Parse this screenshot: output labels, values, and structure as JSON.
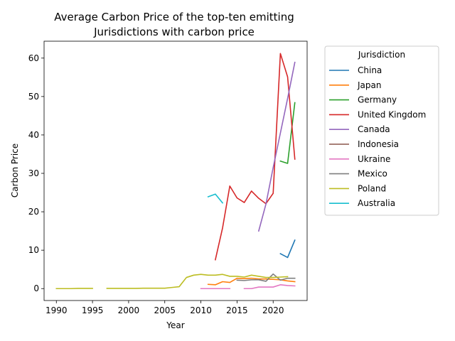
{
  "chart_data": {
    "type": "line",
    "title_line1": "Average Carbon Price of the top-ten emitting",
    "title_line2": "Jurisdictions with carbon price",
    "xlabel": "Year",
    "ylabel": "Carbon Price",
    "xlim": [
      1988.3,
      2024.7
    ],
    "ylim": [
      -3.1,
      64.4
    ],
    "xticks": [
      1990,
      1995,
      2000,
      2005,
      2010,
      2015,
      2020
    ],
    "yticks": [
      0,
      10,
      20,
      30,
      40,
      50,
      60
    ],
    "grid": false,
    "legend_title": "Jurisdiction",
    "legend_placement": "outside right",
    "series": [
      {
        "name": "China",
        "color": "#1f77b4",
        "x": [
          2021,
          2022,
          2023
        ],
        "y": [
          9.1,
          8.1,
          12.6
        ]
      },
      {
        "name": "Japan",
        "color": "#ff7f0e",
        "x": [
          2011,
          2012,
          2013,
          2014,
          2015,
          2016,
          2017,
          2018,
          2019,
          2020,
          2021,
          2022,
          2023
        ],
        "y": [
          1.1,
          1.0,
          1.8,
          1.6,
          2.7,
          2.6,
          2.7,
          2.5,
          2.5,
          2.4,
          2.3,
          2.0,
          1.8
        ]
      },
      {
        "name": "Germany",
        "color": "#2ca02c",
        "x": [
          2021,
          2022,
          2023
        ],
        "y": [
          33.2,
          32.6,
          48.4
        ]
      },
      {
        "name": "United Kingdom",
        "color": "#d62728",
        "x": [
          2012,
          2013,
          2014,
          2015,
          2016,
          2017,
          2018,
          2019,
          2020,
          2021,
          2022,
          2023
        ],
        "y": [
          7.5,
          15.8,
          26.7,
          23.6,
          22.4,
          25.4,
          23.5,
          22.1,
          24.8,
          61.2,
          55.1,
          33.7
        ]
      },
      {
        "name": "Canada",
        "color": "#9467bd",
        "x": [
          2018,
          2019,
          2020,
          2021,
          2022,
          2023
        ],
        "y": [
          15.0,
          22.0,
          31.5,
          40.5,
          49.5,
          58.9
        ]
      },
      {
        "name": "Indonesia",
        "color": "#8c564b",
        "x": [],
        "y": []
      },
      {
        "name": "Ukraine",
        "color": "#e377c2",
        "x": [
          2010,
          2011,
          2012,
          2013,
          2014,
          null,
          2016,
          2017,
          2018,
          2019,
          2020,
          2021,
          2022,
          2023
        ],
        "y": [
          0.0,
          0.0,
          0.0,
          0.0,
          0.0,
          null,
          0.0,
          0.0,
          0.4,
          0.4,
          0.4,
          1.0,
          0.8,
          0.7
        ]
      },
      {
        "name": "Mexico",
        "color": "#7f7f7f",
        "x": [
          2015,
          2016,
          2017,
          2018,
          2019,
          2020,
          2021,
          2022,
          2023
        ],
        "y": [
          2.2,
          2.1,
          2.3,
          2.3,
          1.9,
          3.8,
          2.2,
          2.7,
          2.7
        ]
      },
      {
        "name": "Poland",
        "color": "#bcbd22",
        "x": [
          1990,
          1991,
          1992,
          1993,
          1994,
          1995,
          null,
          1997,
          1998,
          1999,
          2000,
          2001,
          2002,
          2003,
          2004,
          2005,
          2006,
          2007,
          2008,
          2009,
          2010,
          2011,
          2012,
          2013,
          2014,
          2015,
          2016,
          2017,
          2018,
          2019,
          2020,
          2021,
          2022
        ],
        "y": [
          0.0,
          0.0,
          0.0,
          0.05,
          0.05,
          0.05,
          null,
          0.05,
          0.05,
          0.05,
          0.05,
          0.05,
          0.1,
          0.1,
          0.1,
          0.1,
          0.3,
          0.5,
          2.9,
          3.5,
          3.7,
          3.5,
          3.5,
          3.7,
          3.2,
          3.2,
          3.0,
          3.5,
          3.2,
          2.9,
          2.9,
          3.0,
          3.1
        ]
      },
      {
        "name": "Australia",
        "color": "#17becf",
        "x": [
          2011,
          2012,
          2013
        ],
        "y": [
          23.9,
          24.6,
          22.3
        ]
      }
    ]
  }
}
